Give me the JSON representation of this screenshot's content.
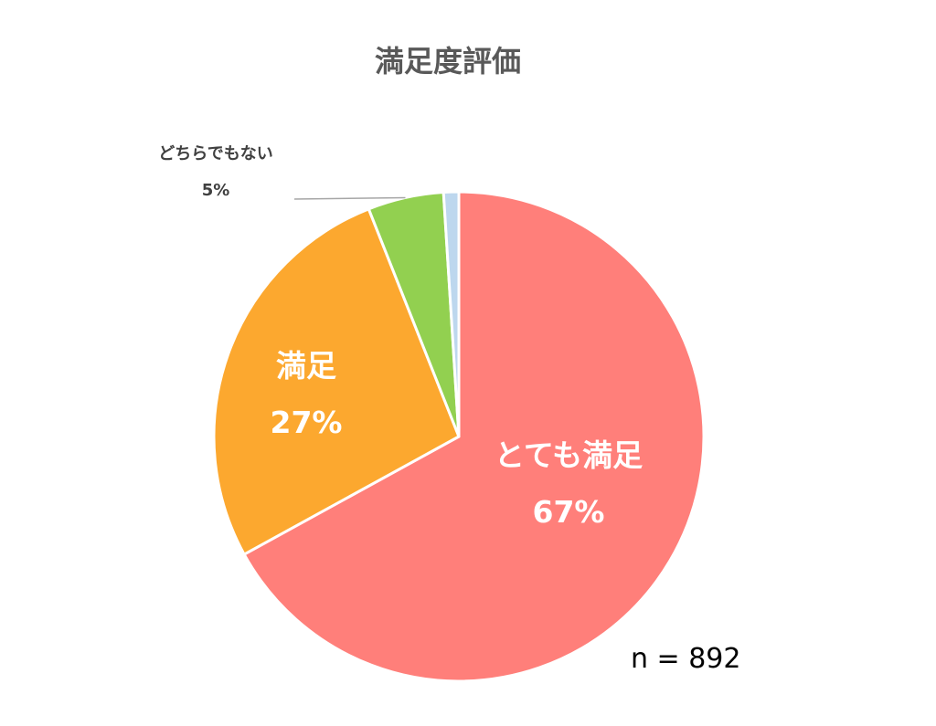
{
  "chart_data": {
    "type": "pie",
    "title": "満足度評価",
    "slices": [
      {
        "label": "とても満足",
        "value": 67,
        "value_label": "67%",
        "color": "#ff7f7a",
        "label_color": "#ffffff"
      },
      {
        "label": "満足",
        "value": 27,
        "value_label": "27%",
        "color": "#fca82f",
        "label_color": "#ffffff"
      },
      {
        "label": "どちらでもない",
        "value": 5,
        "value_label": "5%",
        "color": "#92d050",
        "label_color": "#404040"
      },
      {
        "label": "",
        "value": 1,
        "value_label": "",
        "color": "#bdd7ee",
        "label_color": "#404040"
      }
    ],
    "sample_size": "n = 892"
  }
}
